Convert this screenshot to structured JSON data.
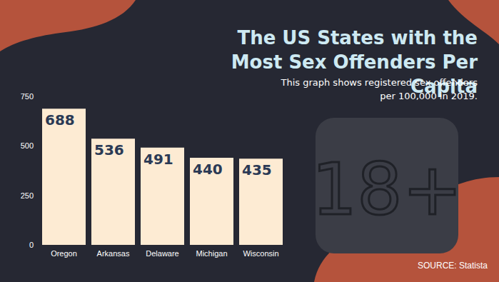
{
  "chart_data": {
    "type": "bar",
    "title": "The US States with the Most Sex Offenders Per Capita",
    "subtitle": "This graph shows registered sex offenders per 100,000 in 2019.",
    "source": "SOURCE: Statista",
    "annotations": [
      "18+"
    ],
    "categories": [
      "Oregon",
      "Arkansas",
      "Delaware",
      "Michigan",
      "Wisconsin"
    ],
    "values": [
      688,
      536,
      491,
      440,
      435
    ],
    "color": "#fdebd3",
    "ylim": [
      0,
      750
    ],
    "yticks": [
      0,
      250,
      500,
      750
    ],
    "grid": false,
    "data_labels": true
  }
}
